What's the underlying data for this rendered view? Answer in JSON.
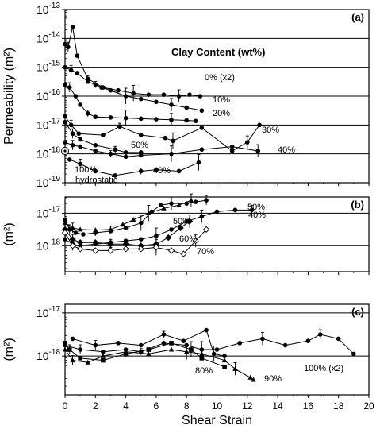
{
  "chart_data": {
    "type": "line",
    "xlabel": "Shear Strain",
    "xlim": [
      0,
      20
    ],
    "x_ticks": [
      "0",
      "2",
      "4",
      "6",
      "8",
      "10",
      "12",
      "14",
      "16",
      "18",
      "20"
    ],
    "grid": "horizontal",
    "panels": [
      {
        "id": "a",
        "letter": "(a)",
        "ylabel": "Permeability (m²)",
        "yscale": "log",
        "ylim_exp": [
          -19,
          -13
        ],
        "y_ticks": [
          {
            "base": "10",
            "exp": "-13",
            "v": -13
          },
          {
            "base": "10",
            "exp": "-14",
            "v": -14
          },
          {
            "base": "10",
            "exp": "-15",
            "v": -15
          },
          {
            "base": "10",
            "exp": "-16",
            "v": -16
          },
          {
            "base": "10",
            "exp": "-17",
            "v": -17
          },
          {
            "base": "10",
            "exp": "-18",
            "v": -18
          },
          {
            "base": "10",
            "exp": "-19",
            "v": -19
          }
        ],
        "legend_title": "Clay Content (wt%)",
        "series": [
          {
            "name": "0% (x2)",
            "marker": "circle",
            "points": [
              [
                0,
                -14.2
              ],
              [
                0.2,
                -14.3
              ],
              [
                0.5,
                -13.6
              ],
              [
                0.8,
                -14.6
              ],
              [
                1.5,
                -15.4
              ],
              [
                2.5,
                -15.7
              ],
              [
                3.5,
                -15.8
              ],
              [
                4.5,
                -15.9
              ],
              [
                5.5,
                -15.95
              ],
              [
                6.5,
                -15.95
              ],
              [
                7.5,
                -16.0
              ],
              [
                8.2,
                -15.95
              ],
              [
                8.9,
                -16.0
              ]
            ]
          },
          {
            "name": "10%",
            "marker": "circle",
            "points": [
              [
                0,
                -15.0
              ],
              [
                0.4,
                -15.1
              ],
              [
                0.8,
                -15.2
              ],
              [
                1.5,
                -15.5
              ],
              [
                2.0,
                -15.6
              ],
              [
                2.4,
                -15.7
              ],
              [
                3.0,
                -15.8
              ],
              [
                4.0,
                -16.0
              ],
              [
                5.0,
                -16.1
              ],
              [
                6.0,
                -16.2
              ],
              [
                7.0,
                -16.3
              ],
              [
                8.0,
                -16.4
              ],
              [
                9.0,
                -16.5
              ]
            ]
          },
          {
            "name": "20%",
            "marker": "circle",
            "points": [
              [
                0,
                -15.6
              ],
              [
                0.3,
                -15.7
              ],
              [
                0.7,
                -16.0
              ],
              [
                1.0,
                -16.3
              ],
              [
                1.5,
                -16.6
              ],
              [
                2.0,
                -16.72
              ],
              [
                3.0,
                -16.74
              ],
              [
                4.0,
                -16.76
              ],
              [
                5.0,
                -16.78
              ],
              [
                6.0,
                -16.8
              ],
              [
                7.0,
                -16.82
              ],
              [
                8.0,
                -16.84
              ],
              [
                8.6,
                -16.86
              ]
            ]
          },
          {
            "name": "30%",
            "marker": "circle",
            "points": [
              [
                0,
                -16.7
              ],
              [
                0.4,
                -17.0
              ],
              [
                0.9,
                -17.3
              ],
              [
                2.5,
                -17.35
              ],
              [
                3.6,
                -17.05
              ],
              [
                5.0,
                -17.35
              ],
              [
                6.6,
                -17.45
              ],
              [
                7.1,
                -17.55
              ],
              [
                9.0,
                -17.1
              ],
              [
                11.0,
                -17.9
              ],
              [
                12.0,
                -17.6
              ],
              [
                12.8,
                -17.0
              ]
            ]
          },
          {
            "name": "40%",
            "marker": "circle",
            "points": [
              [
                0,
                -17.6
              ],
              [
                0.5,
                -17.7
              ],
              [
                1.0,
                -17.75
              ],
              [
                2.0,
                -17.9
              ],
              [
                3.0,
                -18.0
              ],
              [
                4.0,
                -18.1
              ],
              [
                5.0,
                -18.05
              ],
              [
                7.0,
                -18.0
              ],
              [
                9.0,
                -17.85
              ],
              [
                11.0,
                -17.75
              ],
              [
                12.7,
                -17.9
              ]
            ]
          },
          {
            "name": "50%",
            "marker": "circle",
            "points": [
              [
                0,
                -16.9
              ],
              [
                0.5,
                -17.3
              ],
              [
                1.0,
                -17.5
              ],
              [
                2.0,
                -17.7
              ],
              [
                3.3,
                -17.85
              ],
              [
                4.0,
                -17.95
              ],
              [
                5.0,
                -17.95
              ]
            ]
          },
          {
            "name": "40%",
            "marker": "circle",
            "points": [
              [
                0.3,
                -18.2
              ],
              [
                1.0,
                -18.35
              ],
              [
                2.0,
                -18.6
              ],
              [
                3.3,
                -18.75
              ],
              [
                5.0,
                -18.6
              ],
              [
                6.0,
                -18.55
              ],
              [
                7.5,
                -18.6
              ],
              [
                8.8,
                -18.3
              ]
            ]
          },
          {
            "name": "100%",
            "marker": "circle-open",
            "points": [
              [
                0,
                -17.9
              ]
            ]
          }
        ],
        "annotations": [
          "0% (x2)",
          "10%",
          "20%",
          "30%",
          "40%",
          "50%",
          "40%",
          "100%",
          "hydrostatic"
        ]
      },
      {
        "id": "b",
        "letter": "(b)",
        "ylabel": "(m²)",
        "yscale": "log",
        "ylim_exp": [
          -18.8,
          -16.5
        ],
        "y_ticks": [
          {
            "base": "10",
            "exp": "-17",
            "v": -17
          },
          {
            "base": "10",
            "exp": "-18",
            "v": -18
          }
        ],
        "series": [
          {
            "name": "50%",
            "marker": "circle",
            "points": [
              [
                0,
                -17.2
              ],
              [
                0.3,
                -17.5
              ],
              [
                0.7,
                -17.6
              ],
              [
                1.2,
                -17.65
              ],
              [
                2.0,
                -17.6
              ],
              [
                3.0,
                -17.55
              ],
              [
                4.0,
                -17.45
              ],
              [
                5.0,
                -17.3
              ],
              [
                5.7,
                -16.95
              ],
              [
                6.3,
                -16.75
              ],
              [
                7.0,
                -16.7
              ],
              [
                8.0,
                -16.7
              ],
              [
                8.6,
                -16.65
              ],
              [
                9.3,
                -16.6
              ]
            ]
          },
          {
            "name": "40%",
            "marker": "triangle",
            "points": [
              [
                0,
                -17.3
              ],
              [
                0.5,
                -17.45
              ],
              [
                1.0,
                -17.5
              ],
              [
                2.0,
                -17.52
              ],
              [
                3.0,
                -17.5
              ],
              [
                3.8,
                -17.35
              ],
              [
                4.5,
                -17.2
              ],
              [
                5.5,
                -17.0
              ],
              [
                6.5,
                -16.85
              ],
              [
                7.5,
                -16.75
              ],
              [
                8.3,
                -16.6
              ]
            ]
          },
          {
            "name": "50%",
            "marker": "circle",
            "points": [
              [
                0,
                -17.8
              ],
              [
                0.5,
                -17.95
              ],
              [
                1.0,
                -18.0
              ],
              [
                2.0,
                -17.95
              ],
              [
                3.0,
                -17.9
              ],
              [
                4.0,
                -17.85
              ],
              [
                5.0,
                -17.8
              ],
              [
                6.0,
                -17.7
              ],
              [
                7.0,
                -17.5
              ],
              [
                8.0,
                -17.25
              ],
              [
                9.0,
                -17.1
              ],
              [
                10.0,
                -16.95
              ],
              [
                11.2,
                -16.9
              ],
              [
                12.3,
                -16.9
              ]
            ]
          },
          {
            "name": "60%",
            "marker": "diamond",
            "points": [
              [
                0,
                -17.5
              ],
              [
                0.5,
                -17.8
              ],
              [
                1.0,
                -17.9
              ],
              [
                2.0,
                -17.9
              ],
              [
                3.0,
                -17.95
              ],
              [
                4.0,
                -17.95
              ],
              [
                5.0,
                -18.0
              ],
              [
                6.0,
                -17.95
              ],
              [
                6.8,
                -17.75
              ],
              [
                7.6,
                -17.45
              ],
              [
                8.2,
                -17.25
              ]
            ]
          },
          {
            "name": "70%",
            "marker": "diamond-open",
            "points": [
              [
                0,
                -17.6
              ],
              [
                0.5,
                -18.0
              ],
              [
                1.0,
                -18.1
              ],
              [
                2.0,
                -18.15
              ],
              [
                3.0,
                -18.15
              ],
              [
                4.0,
                -18.1
              ],
              [
                5.0,
                -18.1
              ],
              [
                6.0,
                -18.05
              ],
              [
                7.0,
                -18.15
              ],
              [
                7.8,
                -18.25
              ],
              [
                8.6,
                -17.85
              ],
              [
                9.3,
                -17.5
              ]
            ]
          }
        ],
        "annotations": [
          "50%",
          "50%",
          "40%",
          "60%",
          "70%"
        ]
      },
      {
        "id": "c",
        "letter": "(c)",
        "ylabel": "(m²)",
        "yscale": "log",
        "ylim_exp": [
          -18.9,
          -16.8
        ],
        "y_ticks": [
          {
            "base": "10",
            "exp": "-17",
            "v": -17
          },
          {
            "base": "10",
            "exp": "-18",
            "v": -18
          }
        ],
        "series": [
          {
            "name": "80%",
            "marker": "square",
            "points": [
              [
                0,
                -17.7
              ],
              [
                0.3,
                -17.85
              ],
              [
                1.0,
                -18.05
              ],
              [
                2.5,
                -18.1
              ],
              [
                4.0,
                -17.95
              ],
              [
                5.5,
                -17.85
              ],
              [
                7.0,
                -17.7
              ],
              [
                8.3,
                -17.85
              ],
              [
                9.0,
                -18.05
              ],
              [
                10.5,
                -18.25
              ]
            ]
          },
          {
            "name": "90%",
            "marker": "triangle",
            "points": [
              [
                0,
                -17.85
              ],
              [
                0.5,
                -18.1
              ],
              [
                1.5,
                -18.15
              ],
              [
                2.5,
                -18.0
              ],
              [
                4.0,
                -17.9
              ],
              [
                5.5,
                -17.95
              ],
              [
                7.0,
                -17.85
              ],
              [
                8.0,
                -17.9
              ],
              [
                9.0,
                -17.95
              ],
              [
                10.5,
                -18.1
              ],
              [
                11.2,
                -18.3
              ],
              [
                12.2,
                -18.5
              ],
              [
                12.4,
                -18.55
              ]
            ]
          },
          {
            "name": "100% (x2)",
            "marker": "circle",
            "points": [
              [
                0,
                -17.75
              ],
              [
                1.0,
                -17.85
              ],
              [
                2.5,
                -17.9
              ],
              [
                4.0,
                -17.85
              ],
              [
                5.0,
                -17.9
              ],
              [
                6.5,
                -17.7
              ],
              [
                8.0,
                -17.75
              ],
              [
                9.0,
                -17.85
              ],
              [
                10.0,
                -17.85
              ],
              [
                11.5,
                -17.7
              ],
              [
                13.0,
                -17.6
              ],
              [
                14.5,
                -17.75
              ],
              [
                16.0,
                -17.65
              ],
              [
                16.8,
                -17.5
              ],
              [
                18.0,
                -17.6
              ],
              [
                19.0,
                -17.95
              ]
            ]
          },
          {
            "name": "",
            "marker": "circle",
            "points": [
              [
                0.5,
                -17.6
              ],
              [
                2.0,
                -17.75
              ],
              [
                3.5,
                -17.7
              ],
              [
                5.0,
                -17.75
              ],
              [
                6.5,
                -17.5
              ],
              [
                7.8,
                -17.65
              ],
              [
                9.3,
                -17.4
              ],
              [
                9.8,
                -17.95
              ],
              [
                10.5,
                -18.0
              ]
            ]
          }
        ],
        "annotations": [
          "80%",
          "90%",
          "100% (x2)"
        ]
      }
    ]
  }
}
